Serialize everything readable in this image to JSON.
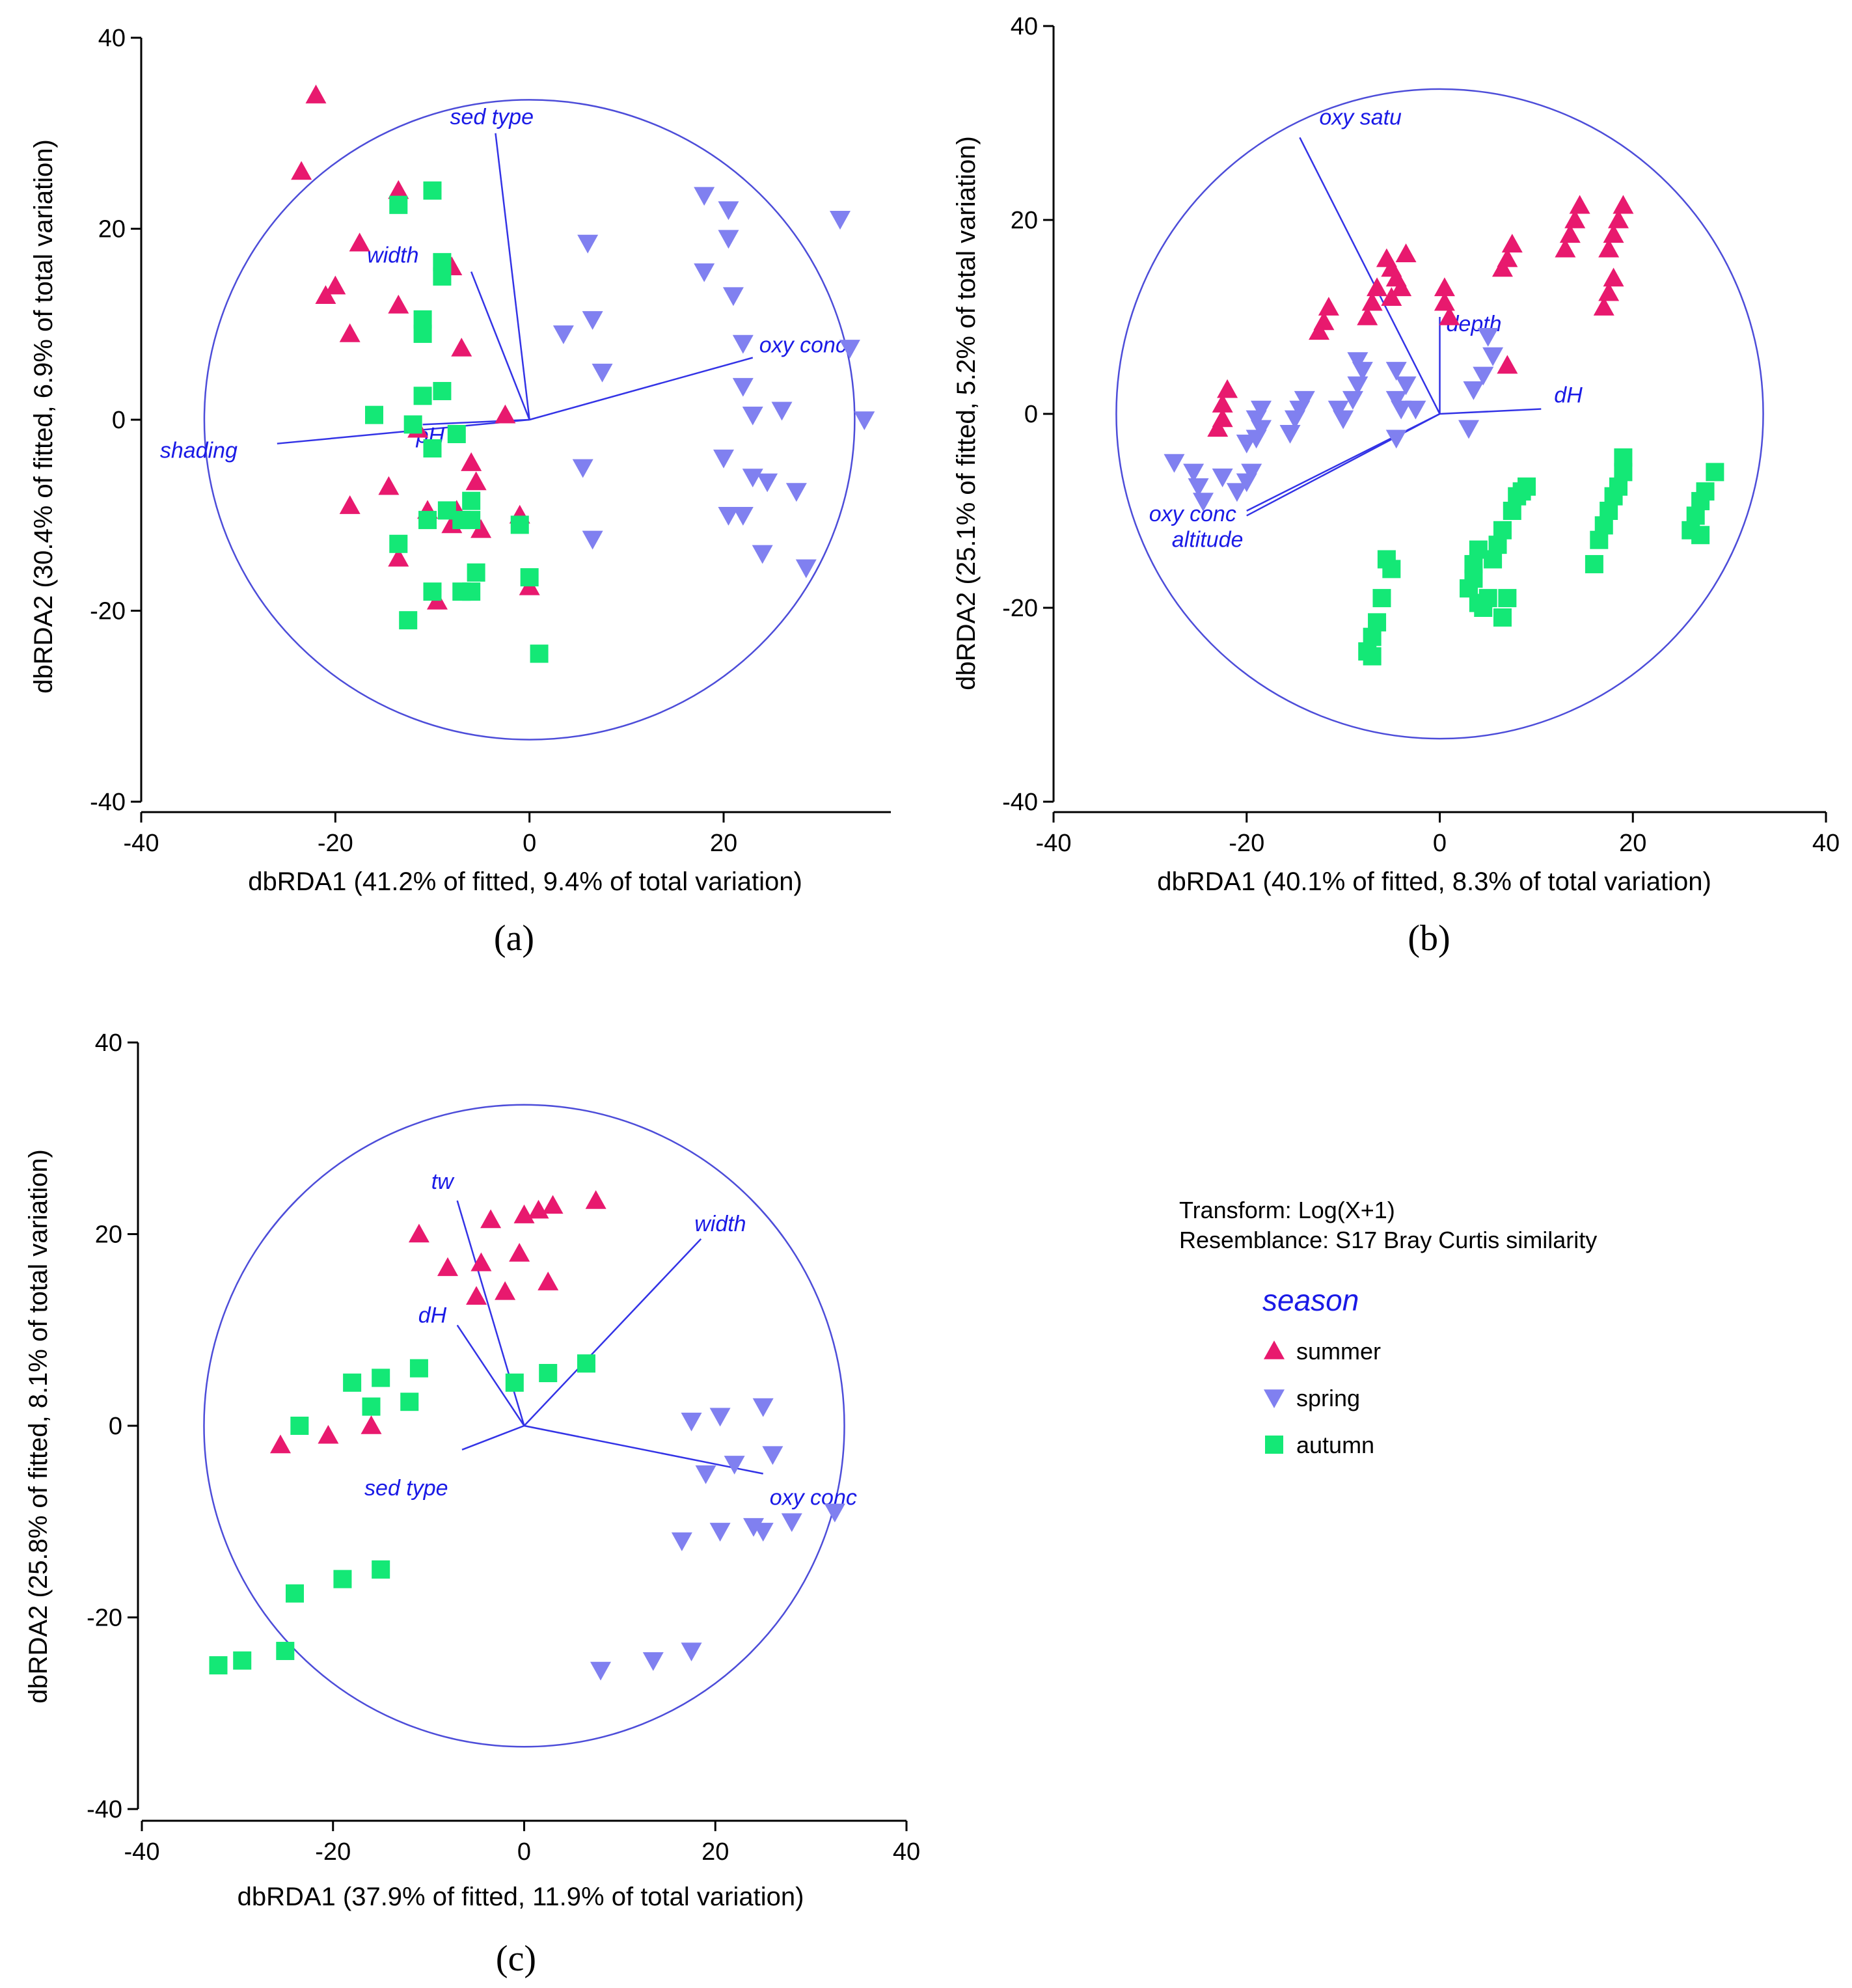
{
  "colors": {
    "summer": "#e8196e",
    "spring": "#8080f0",
    "autumn": "#14e876",
    "vector": "#3333e6"
  },
  "legend": {
    "transform": "Transform: Log(X+1)",
    "resemblance": "Resemblance: S17 Bray Curtis similarity",
    "title": "season",
    "items": [
      {
        "key": "summer",
        "label": "summer",
        "marker": "triangle-up"
      },
      {
        "key": "spring",
        "label": "spring",
        "marker": "triangle-down"
      },
      {
        "key": "autumn",
        "label": "autumn",
        "marker": "square"
      }
    ]
  },
  "chart_data": [
    {
      "id": "a",
      "type": "scatter",
      "panel_label": "(a)",
      "xlabel": "dbRDA1 (41.2% of fitted, 9.4% of total variation)",
      "ylabel": "dbRDA2 (30.4% of fitted, 6.9% of total variation)",
      "xlim": [
        -40,
        40
      ],
      "ylim": [
        -40,
        40
      ],
      "xticks": [
        -40,
        -20,
        0,
        20
      ],
      "yticks": [
        -40,
        -20,
        0,
        20,
        40
      ],
      "circle_radius": 33.5,
      "vectors": [
        {
          "name": "sed type",
          "x": -3.5,
          "y": 30
        },
        {
          "name": "width",
          "x": -6,
          "y": 15.5
        },
        {
          "name": "oxy conc",
          "x": 23,
          "y": 6.5
        },
        {
          "name": "shading",
          "x": -26,
          "y": -2.5
        },
        {
          "name": "pH",
          "x": -11,
          "y": -0.5
        }
      ],
      "series": [
        {
          "name": "summer",
          "points": [
            [
              -22,
              34
            ],
            [
              -23.5,
              26
            ],
            [
              -13.5,
              24
            ],
            [
              -8,
              16
            ],
            [
              -17.5,
              18.5
            ],
            [
              -20,
              14
            ],
            [
              -21,
              13
            ],
            [
              -13.5,
              12
            ],
            [
              -18.5,
              9
            ],
            [
              -7,
              7.5
            ],
            [
              -2.5,
              0.5
            ],
            [
              -11.5,
              -1
            ],
            [
              -6,
              -4.5
            ],
            [
              -14.5,
              -7
            ],
            [
              -5.5,
              -6.5
            ],
            [
              -18.5,
              -9
            ],
            [
              -10.5,
              -9.5
            ],
            [
              -7.5,
              -9.5
            ],
            [
              -1,
              -10
            ],
            [
              -8,
              -11
            ],
            [
              -5,
              -11.5
            ],
            [
              -13.5,
              -14.5
            ],
            [
              -9.5,
              -19
            ],
            [
              0,
              -17.5
            ]
          ]
        },
        {
          "name": "spring",
          "points": [
            [
              18,
              23.5
            ],
            [
              20.5,
              22
            ],
            [
              32,
              21
            ],
            [
              20.5,
              19
            ],
            [
              18,
              15.5
            ],
            [
              21,
              13
            ],
            [
              6,
              18.5
            ],
            [
              6.5,
              10.5
            ],
            [
              3.5,
              9
            ],
            [
              22,
              8
            ],
            [
              7.5,
              5
            ],
            [
              33,
              7.5
            ],
            [
              22,
              3.5
            ],
            [
              26,
              1
            ],
            [
              23,
              0.5
            ],
            [
              34.5,
              0
            ],
            [
              20,
              -4
            ],
            [
              5.5,
              -5
            ],
            [
              23,
              -6
            ],
            [
              24.5,
              -6.5
            ],
            [
              27.5,
              -7.5
            ],
            [
              20.5,
              -10
            ],
            [
              22,
              -10
            ],
            [
              6.5,
              -12.5
            ],
            [
              24,
              -14
            ],
            [
              28.5,
              -15.5
            ]
          ]
        },
        {
          "name": "autumn",
          "points": [
            [
              -13.5,
              22.5
            ],
            [
              -10,
              24
            ],
            [
              -9,
              16.5
            ],
            [
              -9,
              15
            ],
            [
              -11,
              10.5
            ],
            [
              -11,
              9
            ],
            [
              -16,
              0.5
            ],
            [
              -11,
              2.5
            ],
            [
              -9,
              3
            ],
            [
              -12,
              -0.5
            ],
            [
              -10,
              -3
            ],
            [
              -7.5,
              -1.5
            ],
            [
              -6,
              -8.5
            ],
            [
              -8.5,
              -9.5
            ],
            [
              -10.5,
              -10.5
            ],
            [
              -7,
              -10.5
            ],
            [
              -6,
              -10.5
            ],
            [
              -1,
              -11
            ],
            [
              -13.5,
              -13
            ],
            [
              -10,
              -18
            ],
            [
              -5.5,
              -16
            ],
            [
              -6,
              -18
            ],
            [
              -7,
              -18
            ],
            [
              0,
              -16.5
            ],
            [
              -12.5,
              -21
            ],
            [
              1,
              -24.5
            ]
          ]
        }
      ]
    },
    {
      "id": "b",
      "type": "scatter",
      "panel_label": "(b)",
      "xlabel": "dbRDA1 (40.1% of fitted, 8.3% of total variation)",
      "ylabel": "dbRDA2 (25.1% of fitted, 5.2% of total variation)",
      "xlim": [
        -40,
        40
      ],
      "ylim": [
        -40,
        40
      ],
      "xticks": [
        -40,
        -20,
        0,
        20,
        40
      ],
      "yticks": [
        -40,
        -20,
        0,
        20,
        40
      ],
      "circle_radius": 33.5,
      "vectors": [
        {
          "name": "oxy satu",
          "x": -14.5,
          "y": 28.5
        },
        {
          "name": "depth",
          "x": 0,
          "y": 10
        },
        {
          "name": "dH",
          "x": 10.5,
          "y": 0.5
        },
        {
          "name": "oxy conc",
          "x": -20,
          "y": -10
        },
        {
          "name": "altitude",
          "x": -20,
          "y": -10.5
        }
      ],
      "series": [
        {
          "name": "summer",
          "points": [
            [
              -22,
              2.5
            ],
            [
              -22.5,
              1
            ],
            [
              -22.5,
              -0.5
            ],
            [
              -23,
              -1.5
            ],
            [
              -11.5,
              11
            ],
            [
              -12,
              9.5
            ],
            [
              -12.5,
              8.5
            ],
            [
              -6.5,
              13
            ],
            [
              -7,
              11.5
            ],
            [
              -7.5,
              10
            ],
            [
              -5.5,
              16
            ],
            [
              -5,
              15
            ],
            [
              -4.5,
              14
            ],
            [
              -3.5,
              16.5
            ],
            [
              -4,
              13
            ],
            [
              -5,
              12
            ],
            [
              0.5,
              13
            ],
            [
              0.5,
              11.5
            ],
            [
              1,
              10
            ],
            [
              7.5,
              17.5
            ],
            [
              7,
              16
            ],
            [
              6.5,
              15
            ],
            [
              14.5,
              21.5
            ],
            [
              14,
              20
            ],
            [
              13.5,
              18.5
            ],
            [
              13,
              17
            ],
            [
              19,
              21.5
            ],
            [
              18.5,
              20
            ],
            [
              18,
              18.5
            ],
            [
              17.5,
              17
            ],
            [
              18,
              14
            ],
            [
              17.5,
              12.5
            ],
            [
              17,
              11
            ],
            [
              7,
              5
            ]
          ]
        },
        {
          "name": "spring",
          "points": [
            [
              -27.5,
              -5
            ],
            [
              -25.5,
              -6
            ],
            [
              -25,
              -7.5
            ],
            [
              -24.5,
              -9
            ],
            [
              -22.5,
              -6.5
            ],
            [
              -21,
              -8
            ],
            [
              -20,
              -7
            ],
            [
              -19.5,
              -6
            ],
            [
              -20,
              -3
            ],
            [
              -19,
              -2.5
            ],
            [
              -18.5,
              -1.5
            ],
            [
              -19,
              -0.5
            ],
            [
              -18.5,
              0.5
            ],
            [
              -15.5,
              -2
            ],
            [
              -15,
              -0.5
            ],
            [
              -14.5,
              0.5
            ],
            [
              -14,
              1.5
            ],
            [
              -10,
              -0.5
            ],
            [
              -10.5,
              0.5
            ],
            [
              -9,
              1.5
            ],
            [
              -8.5,
              3
            ],
            [
              -8,
              4.5
            ],
            [
              -8.5,
              5.5
            ],
            [
              -4.5,
              4.5
            ],
            [
              -3.5,
              3
            ],
            [
              -4.5,
              1.5
            ],
            [
              -4,
              0.5
            ],
            [
              -4.5,
              -2.5
            ],
            [
              -2.5,
              0.5
            ],
            [
              3,
              -1.5
            ],
            [
              5,
              8
            ],
            [
              4.5,
              4
            ],
            [
              3.5,
              2.5
            ],
            [
              5.5,
              6
            ]
          ]
        },
        {
          "name": "autumn",
          "points": [
            [
              -7.5,
              -24.5
            ],
            [
              -7,
              -23
            ],
            [
              -6.5,
              -21.5
            ],
            [
              -7,
              -25
            ],
            [
              -5.5,
              -15
            ],
            [
              -5,
              -16
            ],
            [
              -6,
              -19
            ],
            [
              3,
              -18
            ],
            [
              3.5,
              -17
            ],
            [
              3.5,
              -15.5
            ],
            [
              4,
              -14
            ],
            [
              4,
              -19.5
            ],
            [
              4.5,
              -20
            ],
            [
              5,
              -19
            ],
            [
              6.5,
              -21
            ],
            [
              7,
              -19
            ],
            [
              5.5,
              -15
            ],
            [
              6,
              -13.5
            ],
            [
              6.5,
              -12
            ],
            [
              7.5,
              -10
            ],
            [
              8,
              -8.5
            ],
            [
              8.5,
              -8
            ],
            [
              9,
              -7.5
            ],
            [
              16,
              -15.5
            ],
            [
              16.5,
              -13
            ],
            [
              17,
              -11.5
            ],
            [
              17.5,
              -10
            ],
            [
              18,
              -8.5
            ],
            [
              18.5,
              -7.5
            ],
            [
              19,
              -6
            ],
            [
              19,
              -4.5
            ],
            [
              26,
              -12
            ],
            [
              26.5,
              -10.5
            ],
            [
              27,
              -9
            ],
            [
              27.5,
              -8
            ],
            [
              28.5,
              -6
            ],
            [
              27,
              -12.5
            ]
          ]
        }
      ]
    },
    {
      "id": "c",
      "type": "scatter",
      "panel_label": "(c)",
      "xlabel": "dbRDA1 (37.9% of fitted, 11.9% of total variation)",
      "ylabel": "dbRDA2 (25.8% of fitted, 8.1% of total variation)",
      "xlim": [
        -40,
        40
      ],
      "ylim": [
        -40,
        40
      ],
      "xticks": [
        -40,
        -20,
        0,
        20,
        40
      ],
      "yticks": [
        -40,
        -20,
        0,
        20,
        40
      ],
      "circle_radius": 33.5,
      "vectors": [
        {
          "name": "tw",
          "x": -7,
          "y": 23.5
        },
        {
          "name": "width",
          "x": 18.5,
          "y": 19.5
        },
        {
          "name": "dH",
          "x": -7,
          "y": 10.5
        },
        {
          "name": "sed type",
          "x": -6.5,
          "y": -2.5
        },
        {
          "name": "oxy conc",
          "x": 25,
          "y": -5
        }
      ],
      "series": [
        {
          "name": "summer",
          "points": [
            [
              7.5,
              23.5
            ],
            [
              3,
              23
            ],
            [
              1.5,
              22.5
            ],
            [
              0,
              22
            ],
            [
              -3.5,
              21.5
            ],
            [
              -11,
              20
            ],
            [
              -8,
              16.5
            ],
            [
              -4.5,
              17
            ],
            [
              -0.5,
              18
            ],
            [
              -2,
              14
            ],
            [
              2.5,
              15
            ],
            [
              -5,
              13.5
            ],
            [
              -25.5,
              -2
            ],
            [
              -20.5,
              -1
            ],
            [
              -16,
              0
            ]
          ]
        },
        {
          "name": "spring",
          "points": [
            [
              17.5,
              0.5
            ],
            [
              20.5,
              1
            ],
            [
              25,
              2
            ],
            [
              19,
              -5
            ],
            [
              22,
              -4
            ],
            [
              26,
              -3
            ],
            [
              24,
              -10.5
            ],
            [
              25,
              -11
            ],
            [
              28,
              -10
            ],
            [
              32.5,
              -9
            ],
            [
              16.5,
              -12
            ],
            [
              20.5,
              -11
            ],
            [
              8,
              -25.5
            ],
            [
              13.5,
              -24.5
            ],
            [
              17.5,
              -23.5
            ]
          ]
        },
        {
          "name": "autumn",
          "points": [
            [
              6.5,
              6.5
            ],
            [
              2.5,
              5.5
            ],
            [
              -1,
              4.5
            ],
            [
              -11,
              6
            ],
            [
              -15,
              5
            ],
            [
              -18,
              4.5
            ],
            [
              -16,
              2
            ],
            [
              -12,
              2.5
            ],
            [
              -23.5,
              0
            ],
            [
              -24,
              -17.5
            ],
            [
              -19,
              -16
            ],
            [
              -15,
              -15
            ],
            [
              -32,
              -25
            ],
            [
              -29.5,
              -24.5
            ],
            [
              -25,
              -23.5
            ]
          ]
        }
      ]
    }
  ]
}
